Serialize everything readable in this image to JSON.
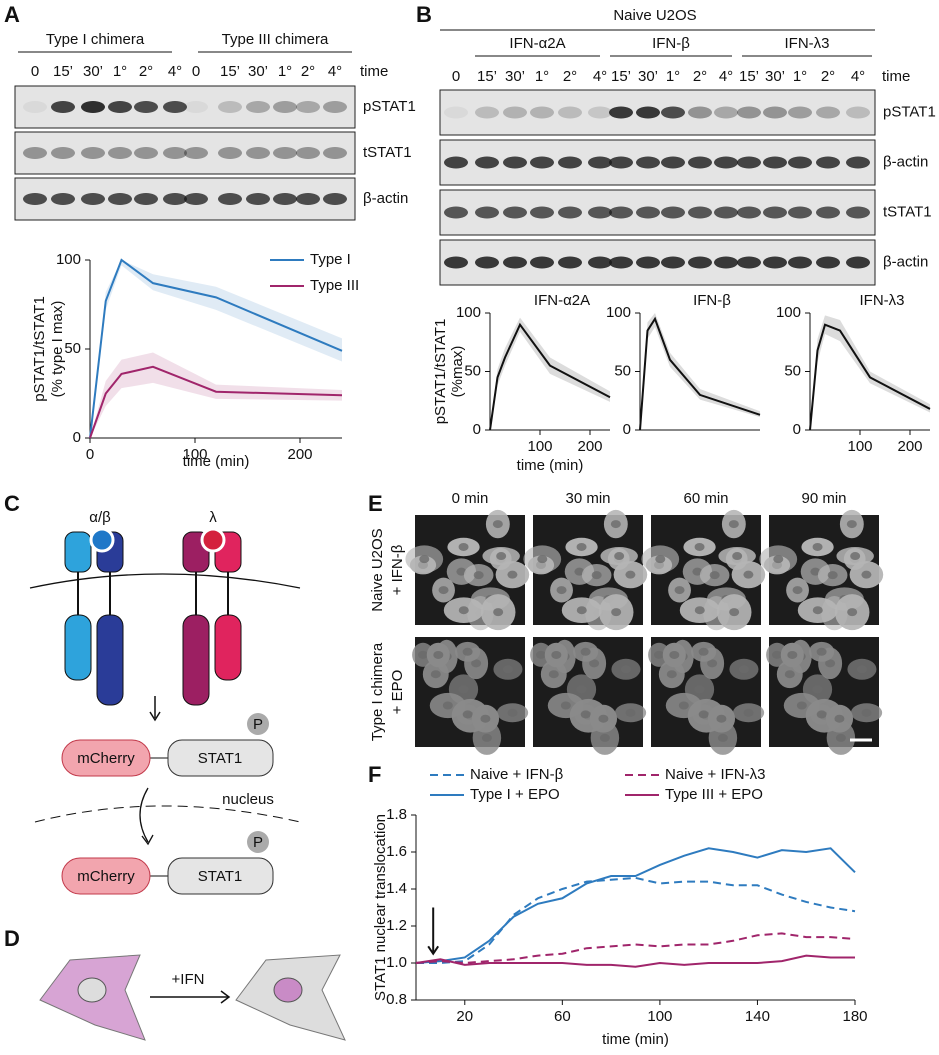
{
  "panel_labels": [
    "A",
    "B",
    "C",
    "D",
    "E",
    "F"
  ],
  "blot_a": {
    "groups": [
      "Type I chimera",
      "Type III chimera"
    ],
    "lanes": [
      "0",
      "15’",
      "30’",
      "1°",
      "2°",
      "4°",
      "0",
      "15’",
      "30’",
      "1°",
      "2°",
      "4°"
    ],
    "lane_axis": "time",
    "rows": [
      "pSTAT1",
      "tSTAT1",
      "β-actin"
    ]
  },
  "blot_b": {
    "title": "Naive U2OS",
    "groups": [
      "IFN-α2A",
      "IFN-β",
      "IFN-λ3"
    ],
    "lanes": [
      "0",
      "15’",
      "30’",
      "1°",
      "2°",
      "4°",
      "15’",
      "30’",
      "1°",
      "2°",
      "4°",
      "15’",
      "30’",
      "1°",
      "2°",
      "4°"
    ],
    "lane_axis": "time",
    "rows": [
      "pSTAT1",
      "β-actin",
      "tSTAT1",
      "β-actin"
    ]
  },
  "diagram_c": {
    "receptor_1": "α/β",
    "receptor_2": "λ",
    "fusion_1": {
      "tag": "mCherry",
      "protein": "STAT1",
      "phospho": "P"
    },
    "compartment": "nucleus",
    "fusion_2": {
      "tag": "mCherry",
      "protein": "STAT1",
      "phospho": "P"
    }
  },
  "diagram_d": {
    "stimulus": "+IFN"
  },
  "imaging_e": {
    "columns": [
      "0 min",
      "30 min",
      "60 min",
      "90 min"
    ],
    "rows": [
      [
        "Naive U2OS",
        "+ IFN-β"
      ],
      [
        "Type I chimera",
        "+ EPO"
      ]
    ]
  },
  "chart_data": [
    {
      "type": "line",
      "x": [
        0,
        15,
        30,
        60,
        120,
        240
      ],
      "xlim": [
        0,
        240
      ],
      "xticks": [
        0,
        100,
        200
      ],
      "ylim": [
        0,
        100
      ],
      "yticks": [
        0,
        50,
        100
      ],
      "x_label": "time (min)",
      "y_label": [
        "pSTAT1/tSTAT1",
        "(% type I max)"
      ],
      "legend": "upper right",
      "series": [
        {
          "name": "Type I",
          "color": "#2e7bbf",
          "values": [
            0,
            77,
            100,
            87,
            79,
            49
          ],
          "band_lower": [
            0,
            72,
            97,
            83,
            72,
            43
          ],
          "band_upper": [
            0,
            82,
            100,
            92,
            85,
            56
          ]
        },
        {
          "name": "Type III",
          "color": "#a0256b",
          "values": [
            0,
            25,
            36,
            40,
            26,
            24
          ],
          "band_lower": [
            0,
            18,
            28,
            31,
            22,
            21
          ],
          "band_upper": [
            0,
            32,
            44,
            48,
            30,
            27
          ]
        }
      ]
    },
    {
      "type": "line",
      "title": "IFN-α2A",
      "x": [
        0,
        15,
        30,
        60,
        120,
        240
      ],
      "xlim": [
        0,
        240
      ],
      "xticks": [
        100,
        200
      ],
      "ylim": [
        0,
        100
      ],
      "yticks": [
        0,
        50,
        100
      ],
      "x_label": "time (min)",
      "y_label": [
        "pSTAT1/tSTAT1",
        "(%max)"
      ],
      "series": [
        {
          "color": "#111111",
          "values": [
            0,
            45,
            62,
            90,
            55,
            28
          ],
          "band_lower": [
            0,
            38,
            55,
            84,
            48,
            24
          ],
          "band_upper": [
            0,
            52,
            70,
            96,
            62,
            33
          ]
        }
      ]
    },
    {
      "type": "line",
      "title": "IFN-β",
      "x": [
        0,
        15,
        30,
        60,
        120,
        240
      ],
      "xlim": [
        0,
        240
      ],
      "ylim": [
        0,
        100
      ],
      "yticks": [
        0,
        50,
        100
      ],
      "series": [
        {
          "color": "#111111",
          "values": [
            0,
            85,
            95,
            60,
            30,
            13
          ],
          "band_lower": [
            0,
            78,
            88,
            54,
            26,
            11
          ],
          "band_upper": [
            0,
            92,
            100,
            66,
            35,
            16
          ]
        }
      ]
    },
    {
      "type": "line",
      "title": "IFN-λ3",
      "x": [
        0,
        15,
        30,
        60,
        120,
        240
      ],
      "xlim": [
        0,
        240
      ],
      "xticks": [
        100,
        200
      ],
      "ylim": [
        0,
        100
      ],
      "yticks": [
        0,
        50,
        100
      ],
      "series": [
        {
          "color": "#111111",
          "values": [
            0,
            68,
            90,
            85,
            45,
            18
          ],
          "band_lower": [
            0,
            58,
            82,
            76,
            40,
            15
          ],
          "band_upper": [
            0,
            78,
            98,
            94,
            50,
            22
          ]
        }
      ]
    },
    {
      "type": "line",
      "x": [
        0,
        10,
        20,
        30,
        40,
        50,
        60,
        70,
        80,
        90,
        100,
        110,
        120,
        130,
        140,
        150,
        160,
        170,
        180
      ],
      "xlim": [
        0,
        180
      ],
      "xticks": [
        20,
        60,
        100,
        140,
        180
      ],
      "ylim": [
        0.8,
        1.8
      ],
      "yticks": [
        0.8,
        {
          "value": 1,
          "label": "1.0"
        },
        1.2,
        1.4,
        1.6,
        1.8
      ],
      "x_label": "time (min)",
      "y_label": [
        "STAT1 nuclear translocation"
      ],
      "legend": "top",
      "series": [
        {
          "name": "Naive + IFN-β",
          "color": "#2e7bbf",
          "dash": true,
          "values": [
            1.0,
            1.0,
            1.01,
            1.1,
            1.26,
            1.35,
            1.4,
            1.44,
            1.45,
            1.46,
            1.43,
            1.44,
            1.44,
            1.42,
            1.42,
            1.37,
            1.33,
            1.3,
            1.28
          ]
        },
        {
          "name": "Type I + EPO",
          "color": "#2e7bbf",
          "values": [
            1.0,
            1.01,
            1.03,
            1.12,
            1.25,
            1.32,
            1.35,
            1.43,
            1.47,
            1.47,
            1.53,
            1.58,
            1.62,
            1.6,
            1.57,
            1.61,
            1.6,
            1.62,
            1.49
          ]
        },
        {
          "name": "Naive + IFN-λ3",
          "color": "#a0256b",
          "dash": true,
          "values": [
            1.0,
            1.01,
            1.0,
            1.01,
            1.02,
            1.04,
            1.05,
            1.08,
            1.09,
            1.1,
            1.09,
            1.1,
            1.1,
            1.12,
            1.15,
            1.16,
            1.14,
            1.14,
            1.13
          ]
        },
        {
          "name": "Type III + EPO",
          "color": "#a0256b",
          "values": [
            1.0,
            1.02,
            0.99,
            1.0,
            1.0,
            1.0,
            1.0,
            0.99,
            0.99,
            0.98,
            1.0,
            0.99,
            1.0,
            1.0,
            1.0,
            1.01,
            1.04,
            1.03,
            1.03
          ]
        }
      ]
    }
  ]
}
